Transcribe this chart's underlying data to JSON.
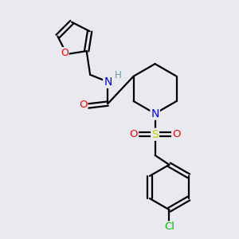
{
  "background_color": "#e8eaf0",
  "bond_color": "#000000",
  "atom_colors": {
    "O": "#ff0000",
    "N": "#0000ff",
    "S": "#cccc00",
    "Cl": "#00bb00",
    "H": "#6aa0a0",
    "C": "#000000"
  },
  "figsize": [
    3.0,
    3.0
  ],
  "dpi": 100
}
